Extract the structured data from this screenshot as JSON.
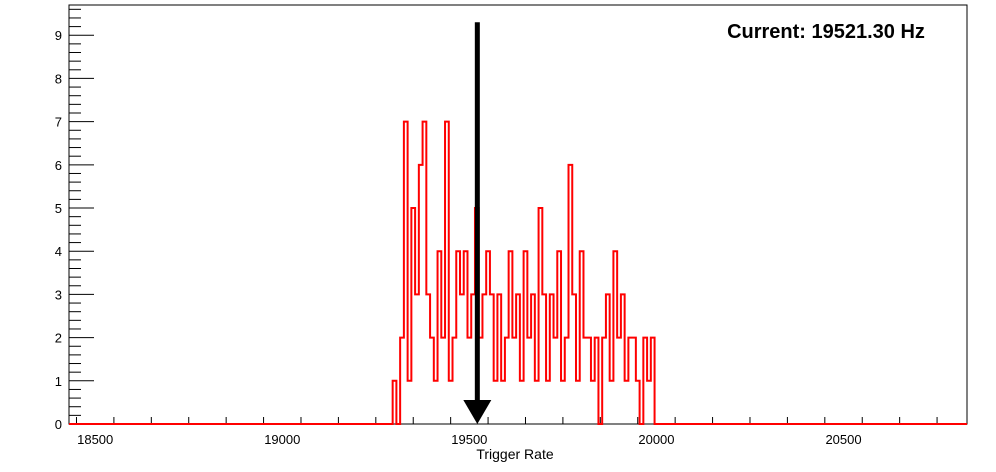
{
  "chart_data": {
    "type": "histogram",
    "title": "",
    "xlabel": "Trigger Rate",
    "ylabel": "",
    "xlim": [
      18430,
      20830
    ],
    "ylim": [
      0,
      9.7
    ],
    "x_ticks": [
      18500,
      19000,
      19500,
      20000,
      20500
    ],
    "x_tick_labels": [
      "18500",
      "19000",
      "19500",
      "20000",
      "20500"
    ],
    "y_ticks": [
      0,
      1,
      2,
      3,
      4,
      5,
      6,
      7,
      8,
      9
    ],
    "y_tick_labels": [
      "0",
      "1",
      "2",
      "3",
      "4",
      "5",
      "6",
      "7",
      "8",
      "9"
    ],
    "grid": false,
    "legend": "none",
    "bin_width": 10,
    "bin_start": 18430,
    "line_color": "#ff0000",
    "series": [
      {
        "bin_edges": [
          19295,
          19305,
          19315,
          19325,
          19335,
          19345,
          19355,
          19365,
          19375,
          19385,
          19395,
          19405,
          19415,
          19425,
          19435,
          19445,
          19455,
          19465,
          19475,
          19485,
          19495,
          19505,
          19515,
          19525,
          19535,
          19545,
          19555,
          19565,
          19575,
          19585,
          19595,
          19605,
          19615,
          19625,
          19635,
          19645,
          19655,
          19665,
          19675,
          19685,
          19695,
          19705,
          19715,
          19725,
          19735,
          19745,
          19755,
          19765,
          19775,
          19785,
          19795,
          19805,
          19815,
          19825,
          19835,
          19845,
          19855,
          19865,
          19875,
          19885,
          19895,
          19905,
          19915,
          19925,
          19935,
          19945,
          19955,
          19965,
          19975,
          19985,
          19995,
          20005
        ],
        "counts": [
          1,
          0,
          2,
          7,
          1,
          5,
          3,
          6,
          7,
          3,
          2,
          1,
          4,
          2,
          7,
          1,
          2,
          4,
          3,
          4,
          2,
          3,
          5,
          2,
          3,
          4,
          3,
          1,
          3,
          1,
          2,
          4,
          2,
          3,
          1,
          4,
          2,
          3,
          1,
          5,
          3,
          1,
          3,
          2,
          4,
          1,
          2,
          6,
          3,
          1,
          4,
          2,
          2,
          1,
          2,
          0,
          2,
          3,
          1,
          4,
          2,
          3,
          1,
          2,
          2,
          1,
          0,
          2,
          1,
          2,
          0
        ]
      }
    ],
    "marker": {
      "x": 19521.3,
      "y_top": 9.3,
      "color": "#000000"
    }
  },
  "annotation": {
    "label": "Current: 19521.30 Hz"
  }
}
